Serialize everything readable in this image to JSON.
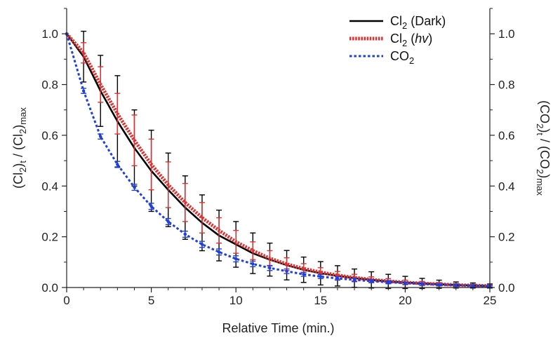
{
  "chart_data": {
    "type": "line",
    "xlabel": "Relative Time (min.)",
    "ylabel_left": {
      "base": "(Cl",
      "sub1": "2",
      "mid": ")",
      "sub2": "t",
      "mid2": " / (Cl",
      "sub3": "2",
      "end": ")",
      "sub4": "max"
    },
    "ylabel_right": {
      "base": "(CO",
      "sub1": "2",
      "mid": ")",
      "sub2": "t",
      "mid2": " / (CO",
      "sub3": "2",
      "end": ")",
      "sub4": "max"
    },
    "xlim": [
      0,
      25
    ],
    "ylim": [
      0,
      1.1
    ],
    "x_ticks": [
      0,
      5,
      10,
      15,
      20,
      25
    ],
    "y_ticks": [
      0.0,
      0.2,
      0.4,
      0.6,
      0.8,
      1.0
    ],
    "y_tick_labels": [
      "0.0",
      "0.2",
      "0.4",
      "0.6",
      "0.8",
      "1.0"
    ],
    "x_tick_labels": [
      "0",
      "5",
      "10",
      "15",
      "20",
      "25"
    ],
    "legend_position": "top-right",
    "x": [
      0,
      1,
      2,
      3,
      4,
      5,
      6,
      7,
      8,
      9,
      10,
      11,
      12,
      13,
      14,
      15,
      16,
      17,
      18,
      19,
      20,
      21,
      22,
      23,
      24,
      25
    ],
    "series": [
      {
        "name": "Cl2 (Dark)",
        "legend": {
          "base": "Cl",
          "sub": "2",
          "rest": " (Dark)",
          "italic": ""
        },
        "color": "#000000",
        "style": "solid",
        "values": [
          1.0,
          0.91,
          0.775,
          0.655,
          0.55,
          0.46,
          0.385,
          0.315,
          0.255,
          0.205,
          0.17,
          0.135,
          0.11,
          0.088,
          0.07,
          0.056,
          0.046,
          0.037,
          0.03,
          0.024,
          0.02,
          0.016,
          0.013,
          0.01,
          0.008,
          0.006
        ],
        "errors": [
          0.0,
          0.1,
          0.14,
          0.18,
          0.15,
          0.16,
          0.145,
          0.125,
          0.11,
          0.1,
          0.09,
          0.08,
          0.065,
          0.058,
          0.05,
          0.046,
          0.04,
          0.036,
          0.032,
          0.028,
          0.024,
          0.02,
          0.016,
          0.012,
          0.01,
          0.008
        ]
      },
      {
        "name": "Cl2 (hv)",
        "legend": {
          "base": "Cl",
          "sub": "2",
          "rest": " (",
          "italic": "hv",
          "close": ")"
        },
        "color": "#e03030",
        "style": "dotted",
        "values": [
          1.0,
          0.925,
          0.8,
          0.685,
          0.58,
          0.485,
          0.405,
          0.335,
          0.275,
          0.225,
          0.18,
          0.145,
          0.115,
          0.092,
          0.074,
          0.06,
          0.048,
          0.039,
          0.031,
          0.025,
          0.02,
          0.016,
          0.013,
          0.01,
          0.008,
          0.006
        ],
        "errors": [
          0.0,
          0.04,
          0.07,
          0.08,
          0.1,
          0.1,
          0.09,
          0.075,
          0.06,
          0.05,
          0.045,
          0.035,
          0.03,
          0.025,
          0.02,
          0.018,
          0.015,
          0.013,
          0.011,
          0.01,
          0.009,
          0.008,
          0.007,
          0.006,
          0.005,
          0.004
        ]
      },
      {
        "name": "CO2",
        "legend": {
          "base": "CO",
          "sub": "2",
          "rest": "",
          "italic": ""
        },
        "color": "#1f3fdd",
        "style": "dashed",
        "values": [
          1.0,
          0.775,
          0.595,
          0.485,
          0.395,
          0.32,
          0.26,
          0.21,
          0.17,
          0.14,
          0.113,
          0.093,
          0.077,
          0.064,
          0.052,
          0.043,
          0.036,
          0.03,
          0.025,
          0.021,
          0.017,
          0.014,
          0.011,
          0.009,
          0.007,
          0.005
        ],
        "errors": [
          0.0,
          0.01,
          0.01,
          0.012,
          0.012,
          0.012,
          0.012,
          0.012,
          0.012,
          0.012,
          0.012,
          0.011,
          0.01,
          0.009,
          0.008,
          0.008,
          0.007,
          0.007,
          0.006,
          0.006,
          0.005,
          0.005,
          0.004,
          0.004,
          0.004,
          0.003
        ]
      }
    ]
  }
}
